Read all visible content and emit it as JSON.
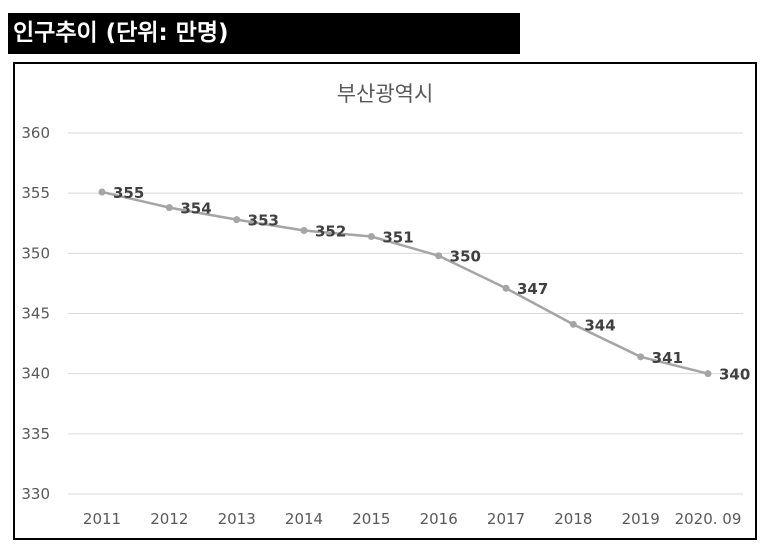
{
  "header": {
    "title": "인구추이 (단위: 만명)"
  },
  "chart_data": {
    "type": "line",
    "title": "부산광역시",
    "categories": [
      "2011",
      "2012",
      "2013",
      "2014",
      "2015",
      "2016",
      "2017",
      "2018",
      "2019",
      "2020. 09"
    ],
    "values": [
      355.1,
      353.8,
      352.8,
      351.9,
      351.4,
      349.8,
      347.1,
      344.1,
      341.4,
      340.0
    ],
    "data_labels": [
      "355",
      "354",
      "353",
      "352",
      "351",
      "350",
      "347",
      "344",
      "341",
      "340"
    ],
    "ylim": [
      330,
      360
    ],
    "yticks": [
      360,
      355,
      350,
      345,
      340,
      335,
      330
    ],
    "xlabel": "",
    "ylabel": "",
    "grid": true,
    "legend": "none",
    "series_color": "#a5a5a5"
  }
}
